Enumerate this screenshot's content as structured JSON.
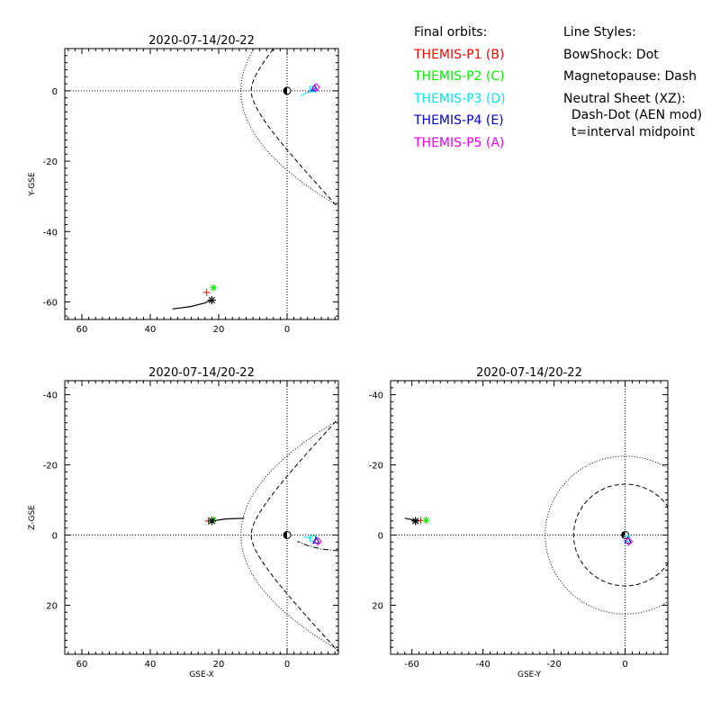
{
  "legend": {
    "orbits_title": "Final orbits:",
    "probes": [
      {
        "label": "THEMIS-P1 (B)",
        "color": "#ff0000"
      },
      {
        "label": "THEMIS-P2 (C)",
        "color": "#00ee00"
      },
      {
        "label": "THEMIS-P3 (D)",
        "color": "#00e5ee"
      },
      {
        "label": "THEMIS-P4 (E)",
        "color": "#0000cc"
      },
      {
        "label": "THEMIS-P5 (A)",
        "color": "#ee00ee"
      }
    ],
    "styles_title": "Line Styles:",
    "styles": [
      "BowShock: Dot",
      "Magnetopause: Dash",
      "Neutral Sheet (XZ):",
      "  Dash-Dot (AEN mod)",
      "  t=interval midpoint"
    ]
  },
  "chart_data": [
    {
      "type": "scatter",
      "title": "2020-07-14/20-22",
      "xlabel": "",
      "ylabel": "Y-GSE",
      "xlim": [
        65,
        -15
      ],
      "ylim": [
        12,
        -65
      ],
      "xticks": [
        60,
        40,
        20,
        0
      ],
      "yticks": [
        -60,
        -40,
        -20,
        0
      ],
      "trajectory": {
        "x": [
          22.5,
          24,
          28,
          33.5
        ],
        "y": [
          -59.5,
          -60.3,
          -61.3,
          -62
        ]
      },
      "probes": [
        {
          "probe": "THEMIS-P1",
          "x": 23.5,
          "y": -57.3
        },
        {
          "probe": "THEMIS-P2",
          "x": 21.5,
          "y": -56
        },
        {
          "probe": "THEMIS-P3",
          "x": -7.5,
          "y": 0.5
        },
        {
          "probe": "THEMIS-P4",
          "x": -8,
          "y": 0.8
        },
        {
          "probe": "THEMIS-P5",
          "x": -8.5,
          "y": 1
        }
      ],
      "probe_tails": [
        {
          "probe": "THEMIS-P3",
          "x": [
            -7.5,
            -4
          ],
          "y": [
            0.5,
            -1.5
          ]
        },
        {
          "probe": "THEMIS-P5",
          "x": [
            -8.5,
            -6
          ],
          "y": [
            1,
            -0.5
          ]
        }
      ],
      "current": {
        "x": 22,
        "y": -59.5
      }
    },
    {
      "type": "scatter",
      "title": "2020-07-14/20-22",
      "xlabel": "GSE-X",
      "ylabel": "Z-GSE",
      "xlim": [
        65,
        -15
      ],
      "ylim": [
        -44,
        34
      ],
      "xticks": [
        60,
        40,
        20,
        0
      ],
      "yticks": [
        -40,
        -20,
        0,
        20
      ],
      "trajectory": {
        "x": [
          22,
          18,
          12.5
        ],
        "y": [
          -4,
          -4.6,
          -4.8
        ]
      },
      "neutral_sheet": {
        "x": [
          -15,
          -10,
          -6,
          -3
        ],
        "y": [
          4.5,
          4,
          3,
          1.8
        ]
      },
      "probes": [
        {
          "probe": "THEMIS-P1",
          "x": 23,
          "y": -4
        },
        {
          "probe": "THEMIS-P2",
          "x": 21.5,
          "y": -4.3
        },
        {
          "probe": "THEMIS-P3",
          "x": -7.5,
          "y": 1
        },
        {
          "probe": "THEMIS-P4",
          "x": -8.5,
          "y": 1.5
        },
        {
          "probe": "THEMIS-P5",
          "x": -9,
          "y": 1.8
        }
      ],
      "probe_tails": [
        {
          "probe": "THEMIS-P3",
          "x": [
            -7.5,
            -5
          ],
          "y": [
            1,
            0.5
          ]
        }
      ],
      "current": {
        "x": 22,
        "y": -4
      }
    },
    {
      "type": "scatter",
      "title": "2020-07-14/20-22",
      "xlabel": "GSE-Y",
      "ylabel": "",
      "xlim": [
        -66,
        12
      ],
      "ylim": [
        -44,
        34
      ],
      "xticks": [
        -60,
        -40,
        -20,
        0
      ],
      "yticks": [
        -40,
        -20,
        0,
        20
      ],
      "trajectory": {
        "x": [
          -59,
          -60.5,
          -62
        ],
        "y": [
          -4,
          -4.5,
          -4.8
        ]
      },
      "probes": [
        {
          "probe": "THEMIS-P1",
          "x": -57.5,
          "y": -4.2
        },
        {
          "probe": "THEMIS-P2",
          "x": -56,
          "y": -4.2
        },
        {
          "probe": "THEMIS-P3",
          "x": 0.5,
          "y": 1
        },
        {
          "probe": "THEMIS-P4",
          "x": 0.8,
          "y": 1.5
        },
        {
          "probe": "THEMIS-P5",
          "x": 1,
          "y": 1.8
        }
      ],
      "current": {
        "x": -59,
        "y": -4
      }
    }
  ]
}
